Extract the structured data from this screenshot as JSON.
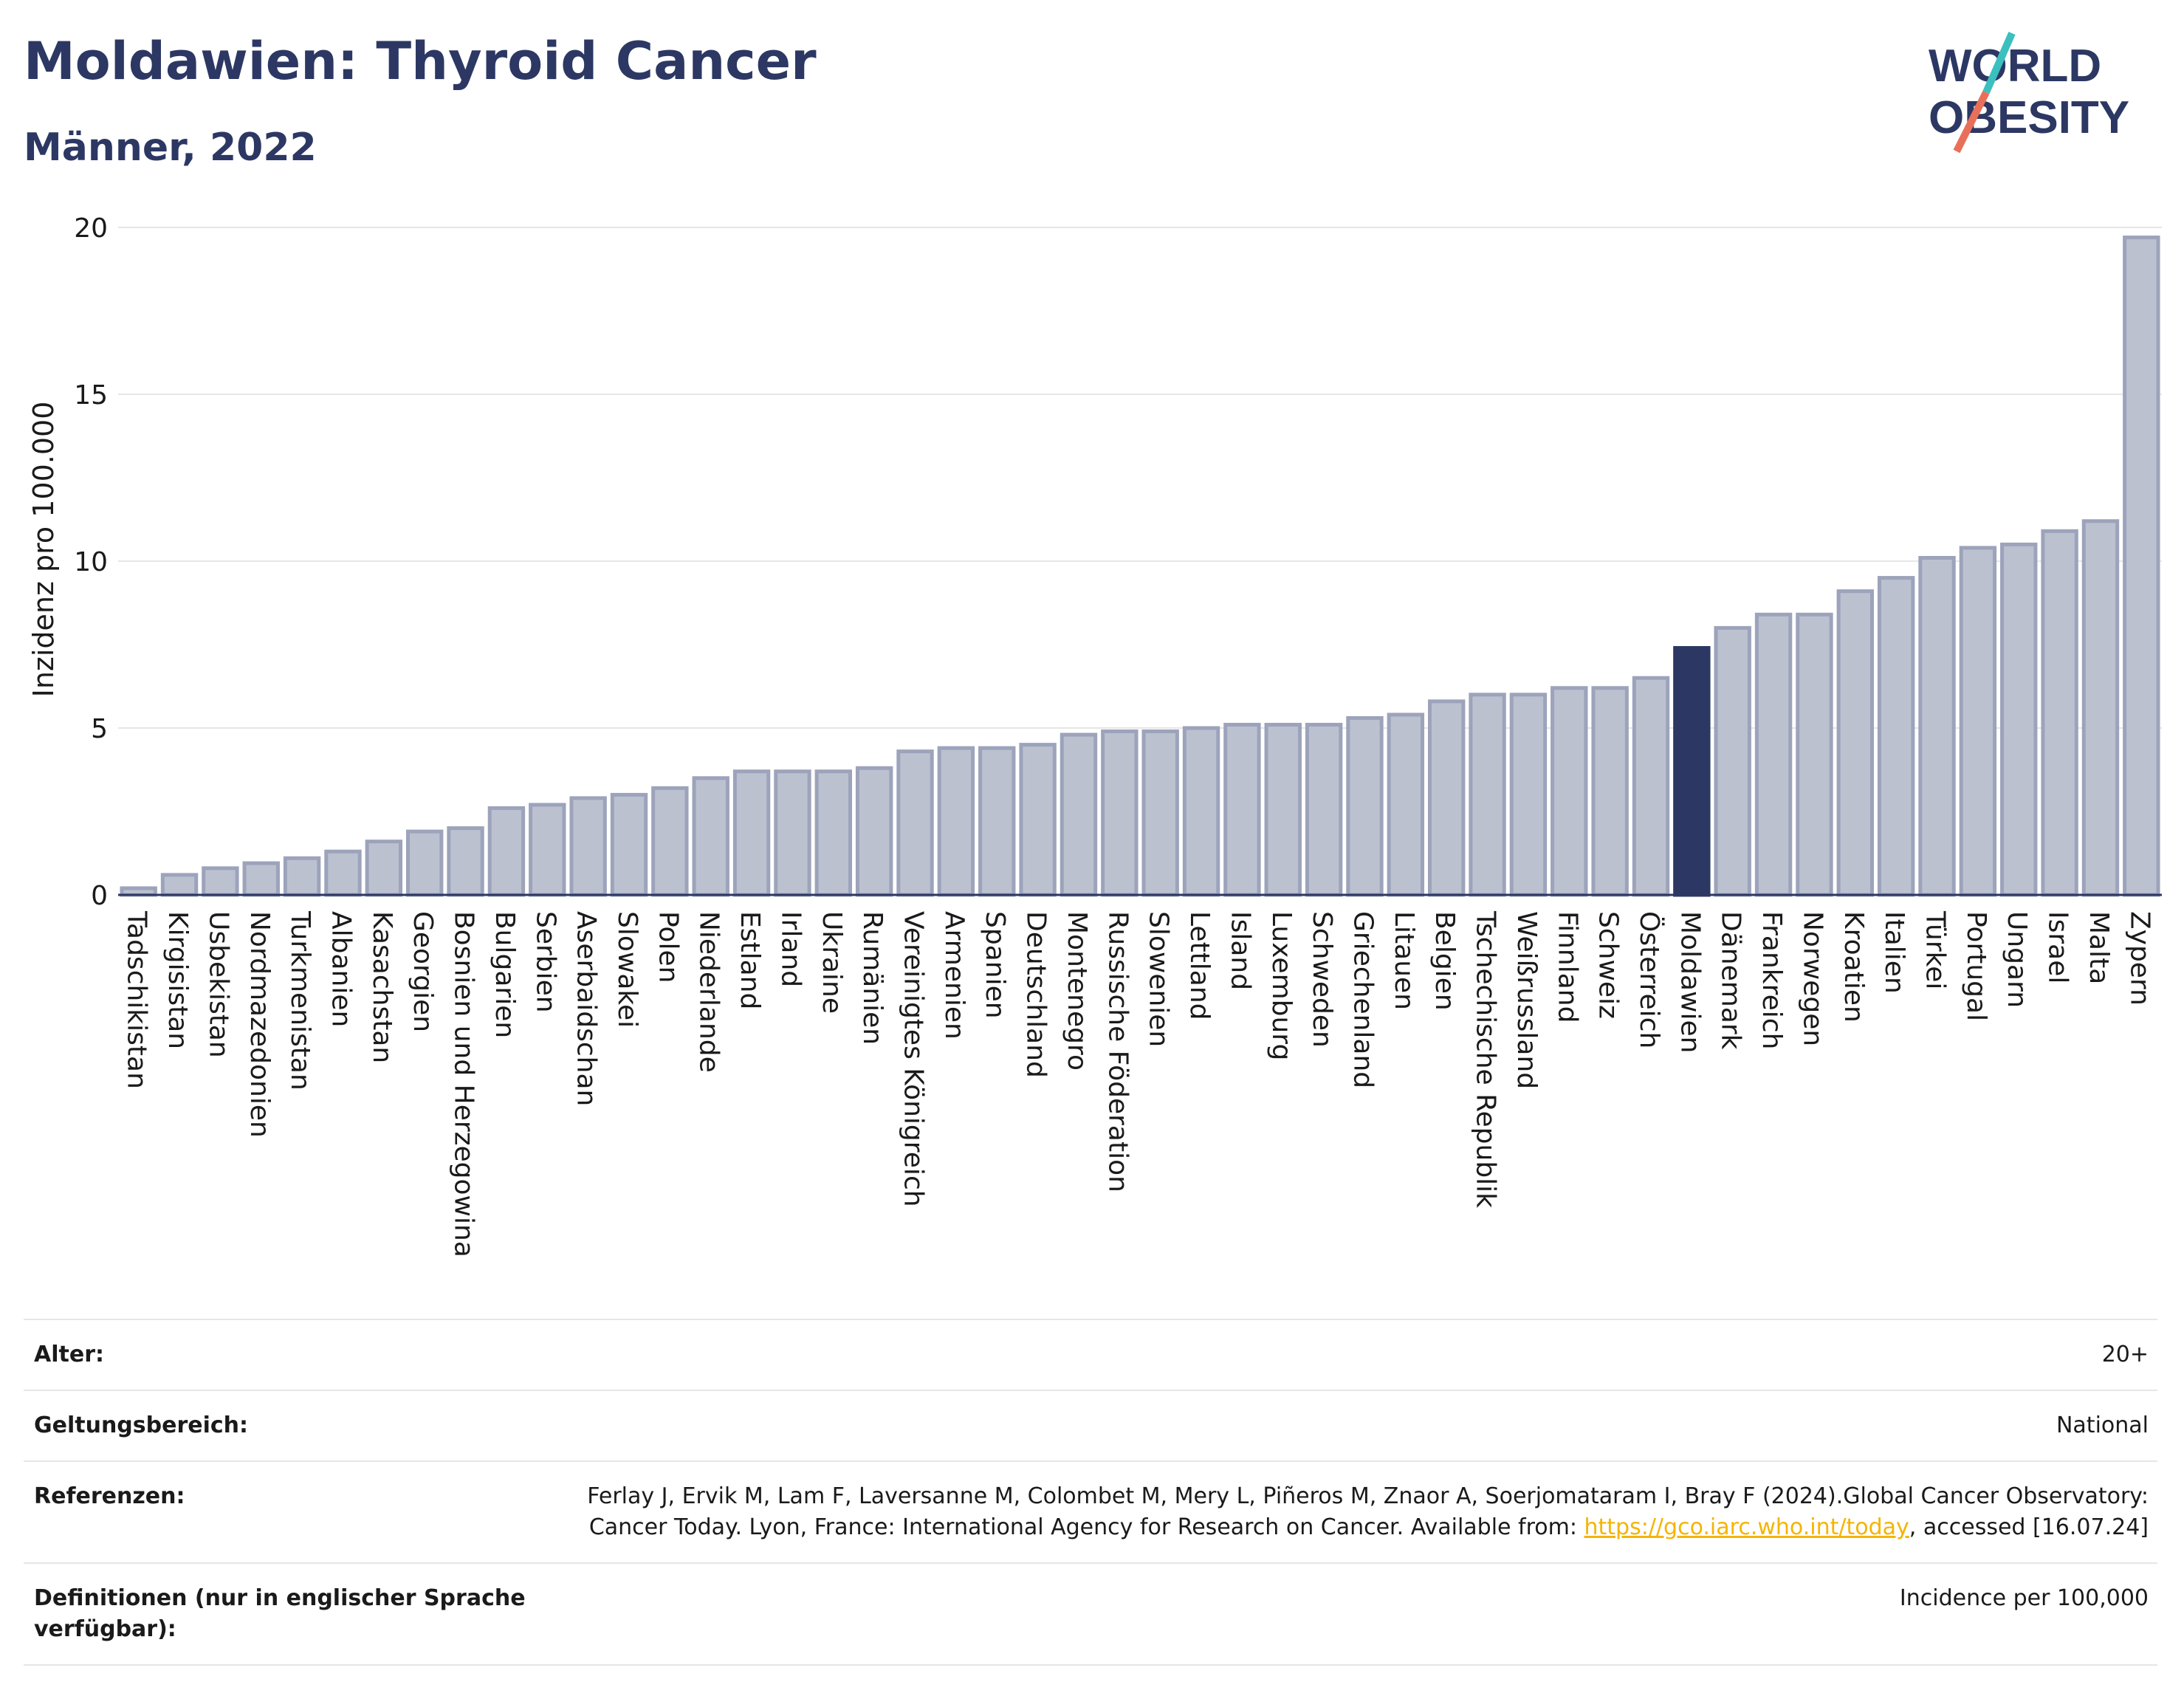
{
  "header": {
    "title": "Moldawien: Thyroid Cancer",
    "subtitle": "Männer, 2022",
    "logo_line1": "WORLD",
    "logo_line2": "OBESITY"
  },
  "colors": {
    "bar": "#bcc1d0",
    "bar_border": "#9ca3bb",
    "highlight": "#2c3863",
    "title": "#2c3863",
    "grid": "#e6e6e6",
    "logo_teal": "#3bbfbf",
    "logo_coral": "#e8705a"
  },
  "chart_data": {
    "type": "bar",
    "ylabel": "Inzidenz pro 100.000",
    "ylim": [
      0,
      20
    ],
    "yticks": [
      0,
      5,
      10,
      15,
      20
    ],
    "grid": true,
    "highlight": "Moldawien",
    "categories": [
      "Tadschikistan",
      "Kirgisistan",
      "Usbekistan",
      "Nordmazedonien",
      "Turkmenistan",
      "Albanien",
      "Kasachstan",
      "Georgien",
      "Bosnien und Herzegowina",
      "Bulgarien",
      "Serbien",
      "Aserbaidschan",
      "Slowakei",
      "Polen",
      "Niederlande",
      "Estland",
      "Irland",
      "Ukraine",
      "Rumänien",
      "Vereinigtes Königreich",
      "Armenien",
      "Spanien",
      "Deutschland",
      "Montenegro",
      "Russische Föderation",
      "Slowenien",
      "Lettland",
      "Island",
      "Luxemburg",
      "Schweden",
      "Griechenland",
      "Litauen",
      "Belgien",
      "Tschechische Republik",
      "Weißrussland",
      "Finnland",
      "Schweiz",
      "Österreich",
      "Moldawien",
      "Dänemark",
      "Frankreich",
      "Norwegen",
      "Kroatien",
      "Italien",
      "Türkei",
      "Portugal",
      "Ungarn",
      "Israel",
      "Malta",
      "Zypern"
    ],
    "values": [
      0.2,
      0.6,
      0.8,
      0.95,
      1.1,
      1.3,
      1.6,
      1.9,
      2.0,
      2.6,
      2.7,
      2.9,
      3.0,
      3.2,
      3.5,
      3.7,
      3.7,
      3.7,
      3.8,
      4.3,
      4.4,
      4.4,
      4.5,
      4.8,
      4.9,
      4.9,
      5.0,
      5.1,
      5.1,
      5.1,
      5.3,
      5.4,
      5.8,
      6.0,
      6.0,
      6.2,
      6.2,
      6.5,
      7.4,
      8.0,
      8.4,
      8.4,
      9.1,
      9.5,
      10.1,
      10.4,
      10.5,
      10.9,
      11.2,
      19.7
    ]
  },
  "meta": [
    {
      "label": "Alter:",
      "value": "20+"
    },
    {
      "label": "Geltungsbereich:",
      "value": "National"
    },
    {
      "label": "Referenzen:",
      "value_pre": "Ferlay J, Ervik M, Lam F, Laversanne M, Colombet M, Mery L, Piñeros M, Znaor A, Soerjomataram I, Bray F (2024).Global Cancer Observatory: Cancer Today. Lyon, France: International Agency for Research on Cancer. Available from: ",
      "link": "https://gco.iarc.who.int/today",
      "value_post": ", accessed [16.07.24]"
    },
    {
      "label": "Definitionen (nur in englischer Sprache verfügbar):",
      "value": "Incidence per 100,000"
    }
  ]
}
